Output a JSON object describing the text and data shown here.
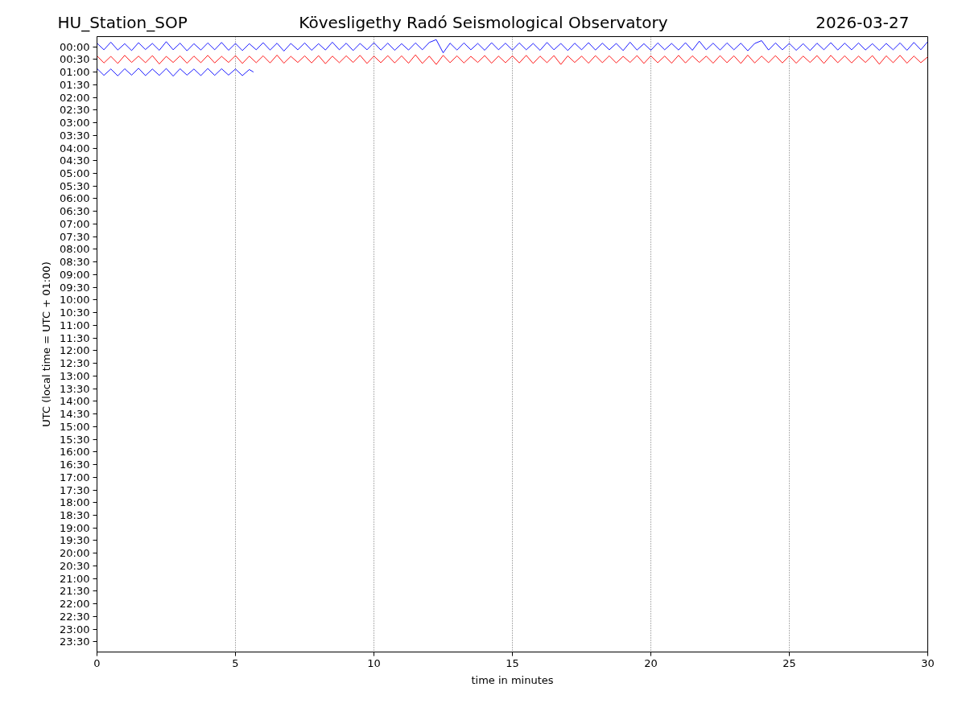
{
  "chart_data": {
    "type": "line",
    "title": "Kövesligethy Radó Seismological Observatory",
    "annotations": [
      "HU_Station_SOP",
      "2026-03-27"
    ],
    "xlabel": "time in minutes",
    "ylabel": "UTC (local time = UTC + 01:00)",
    "xlim": [
      0,
      30
    ],
    "xticks": [
      0,
      5,
      10,
      15,
      20,
      25,
      30
    ],
    "ylim": [
      23.9,
      -0.4
    ],
    "yticks": [
      {
        "value": 0,
        "label": "00:00"
      },
      {
        "value": 0.5,
        "label": "00:30"
      },
      {
        "value": 1,
        "label": "01:00"
      },
      {
        "value": 1.5,
        "label": "01:30"
      },
      {
        "value": 2,
        "label": "02:00"
      },
      {
        "value": 2.5,
        "label": "02:30"
      },
      {
        "value": 3,
        "label": "03:00"
      },
      {
        "value": 3.5,
        "label": "03:30"
      },
      {
        "value": 4,
        "label": "04:00"
      },
      {
        "value": 4.5,
        "label": "04:30"
      },
      {
        "value": 5,
        "label": "05:00"
      },
      {
        "value": 5.5,
        "label": "05:30"
      },
      {
        "value": 6,
        "label": "06:00"
      },
      {
        "value": 6.5,
        "label": "06:30"
      },
      {
        "value": 7,
        "label": "07:00"
      },
      {
        "value": 7.5,
        "label": "07:30"
      },
      {
        "value": 8,
        "label": "08:00"
      },
      {
        "value": 8.5,
        "label": "08:30"
      },
      {
        "value": 9,
        "label": "09:00"
      },
      {
        "value": 9.5,
        "label": "09:30"
      },
      {
        "value": 10,
        "label": "10:00"
      },
      {
        "value": 10.5,
        "label": "10:30"
      },
      {
        "value": 11,
        "label": "11:00"
      },
      {
        "value": 11.5,
        "label": "11:30"
      },
      {
        "value": 12,
        "label": "12:00"
      },
      {
        "value": 12.5,
        "label": "12:30"
      },
      {
        "value": 13,
        "label": "13:00"
      },
      {
        "value": 13.5,
        "label": "13:30"
      },
      {
        "value": 14,
        "label": "14:00"
      },
      {
        "value": 14.5,
        "label": "14:30"
      },
      {
        "value": 15,
        "label": "15:00"
      },
      {
        "value": 15.5,
        "label": "15:30"
      },
      {
        "value": 16,
        "label": "16:00"
      },
      {
        "value": 16.5,
        "label": "16:30"
      },
      {
        "value": 17,
        "label": "17:00"
      },
      {
        "value": 17.5,
        "label": "17:30"
      },
      {
        "value": 18,
        "label": "18:00"
      },
      {
        "value": 18.5,
        "label": "18:30"
      },
      {
        "value": 19,
        "label": "19:00"
      },
      {
        "value": 19.5,
        "label": "19:30"
      },
      {
        "value": 20,
        "label": "20:00"
      },
      {
        "value": 20.5,
        "label": "20:30"
      },
      {
        "value": 21,
        "label": "21:00"
      },
      {
        "value": 21.5,
        "label": "21:30"
      },
      {
        "value": 22,
        "label": "22:00"
      },
      {
        "value": 22.5,
        "label": "22:30"
      },
      {
        "value": 23,
        "label": "23:00"
      },
      {
        "value": 23.5,
        "label": "23:30"
      }
    ],
    "grid": "x",
    "line_style": "solid",
    "x": [
      0,
      0.25,
      0.5,
      0.75,
      1,
      1.25,
      1.5,
      1.75,
      2,
      2.25,
      2.5,
      2.75,
      3,
      3.25,
      3.5,
      3.75,
      4,
      4.25,
      4.5,
      4.75,
      5,
      5.25,
      5.5,
      5.75,
      6,
      6.25,
      6.5,
      6.75,
      7,
      7.25,
      7.5,
      7.75,
      8,
      8.25,
      8.5,
      8.75,
      9,
      9.25,
      9.5,
      9.75,
      10,
      10.25,
      10.5,
      10.75,
      11,
      11.25,
      11.5,
      11.75,
      12,
      12.25,
      12.5,
      12.75,
      13,
      13.25,
      13.5,
      13.75,
      14,
      14.25,
      14.5,
      14.75,
      15,
      15.25,
      15.5,
      15.75,
      16,
      16.25,
      16.5,
      16.75,
      17,
      17.25,
      17.5,
      17.75,
      18,
      18.25,
      18.5,
      18.75,
      19,
      19.25,
      19.5,
      19.75,
      20,
      20.25,
      20.5,
      20.75,
      21,
      21.25,
      21.5,
      21.75,
      22,
      22.25,
      22.5,
      22.75,
      23,
      23.25,
      23.5,
      23.75,
      24,
      24.25,
      24.5,
      24.75,
      25,
      25.25,
      25.5,
      25.75,
      26,
      26.25,
      26.5,
      26.75,
      27,
      27.25,
      27.5,
      27.75,
      28,
      28.25,
      28.5,
      28.75,
      29,
      29.25,
      29.5,
      29.75,
      30
    ],
    "series": [
      {
        "color": "#0000ff",
        "values": [
          -0.14,
          0.12,
          -0.18,
          0.13,
          -0.12,
          0.15,
          -0.16,
          0.11,
          -0.13,
          0.14,
          -0.2,
          0.12,
          -0.14,
          0.16,
          -0.12,
          0.13,
          -0.15,
          0.12,
          -0.17,
          0.14,
          -0.13,
          0.15,
          -0.12,
          0.12,
          -0.16,
          0.13,
          -0.14,
          0.17,
          -0.13,
          0.12,
          -0.15,
          0.14,
          -0.12,
          0.13,
          -0.18,
          0.12,
          -0.14,
          0.15,
          -0.13,
          0.12,
          -0.16,
          0.13,
          -0.14,
          0.14,
          -0.12,
          0.13,
          -0.15,
          0.12,
          -0.17,
          -0.28,
          0.24,
          -0.14,
          0.13,
          -0.15,
          0.12,
          -0.13,
          0.14,
          -0.16,
          0.12,
          -0.14,
          0.13,
          -0.15,
          0.12,
          -0.13,
          0.14,
          -0.17,
          0.12,
          -0.13,
          0.15,
          -0.14,
          0.12,
          -0.16,
          0.13,
          -0.14,
          0.12,
          -0.13,
          0.15,
          -0.18,
          0.13,
          -0.12,
          0.14,
          -0.15,
          0.12,
          -0.13,
          0.13,
          -0.16,
          0.14,
          -0.22,
          0.12,
          -0.14,
          0.13,
          -0.15,
          0.12,
          -0.14,
          0.16,
          -0.13,
          -0.24,
          0.13,
          -0.15,
          0.12,
          -0.13,
          0.14,
          -0.12,
          0.15,
          -0.14,
          0.12,
          -0.16,
          0.13,
          -0.14,
          0.12,
          -0.15,
          0.13,
          -0.12,
          0.14,
          -0.13,
          0.12,
          -0.15,
          0.14,
          -0.17,
          0.12,
          -0.2
        ]
      },
      {
        "color": "#ff0000",
        "values": [
          0.36,
          0.64,
          0.38,
          0.66,
          0.34,
          0.62,
          0.37,
          0.63,
          0.35,
          0.68,
          0.38,
          0.62,
          0.36,
          0.65,
          0.37,
          0.63,
          0.34,
          0.64,
          0.38,
          0.62,
          0.35,
          0.66,
          0.37,
          0.63,
          0.36,
          0.64,
          0.33,
          0.65,
          0.38,
          0.62,
          0.36,
          0.64,
          0.35,
          0.67,
          0.37,
          0.63,
          0.36,
          0.62,
          0.34,
          0.66,
          0.37,
          0.63,
          0.35,
          0.64,
          0.36,
          0.65,
          0.32,
          0.66,
          0.37,
          0.7,
          0.34,
          0.63,
          0.36,
          0.64,
          0.38,
          0.62,
          0.35,
          0.65,
          0.37,
          0.63,
          0.36,
          0.64,
          0.34,
          0.66,
          0.37,
          0.63,
          0.35,
          0.7,
          0.36,
          0.62,
          0.37,
          0.65,
          0.35,
          0.63,
          0.36,
          0.64,
          0.38,
          0.62,
          0.35,
          0.66,
          0.36,
          0.63,
          0.37,
          0.65,
          0.34,
          0.64,
          0.36,
          0.62,
          0.37,
          0.65,
          0.35,
          0.63,
          0.36,
          0.66,
          0.33,
          0.64,
          0.37,
          0.63,
          0.35,
          0.64,
          0.36,
          0.65,
          0.37,
          0.62,
          0.35,
          0.66,
          0.34,
          0.63,
          0.36,
          0.64,
          0.37,
          0.62,
          0.35,
          0.69,
          0.36,
          0.63,
          0.34,
          0.65,
          0.37,
          0.63,
          0.4
        ]
      },
      {
        "color": "#0000ff",
        "x": [
          0,
          0.25,
          0.5,
          0.75,
          1,
          1.25,
          1.5,
          1.75,
          2,
          2.25,
          2.5,
          2.75,
          3,
          3.25,
          3.5,
          3.75,
          4,
          4.25,
          4.5,
          4.75,
          5,
          5.25,
          5.5,
          5.65
        ],
        "values": [
          0.86,
          1.13,
          0.88,
          1.15,
          0.87,
          1.12,
          0.85,
          1.14,
          0.88,
          1.13,
          0.86,
          1.16,
          0.87,
          1.12,
          0.88,
          1.14,
          0.86,
          1.13,
          0.87,
          1.12,
          0.88,
          1.14,
          0.9,
          1.0
        ]
      }
    ]
  }
}
